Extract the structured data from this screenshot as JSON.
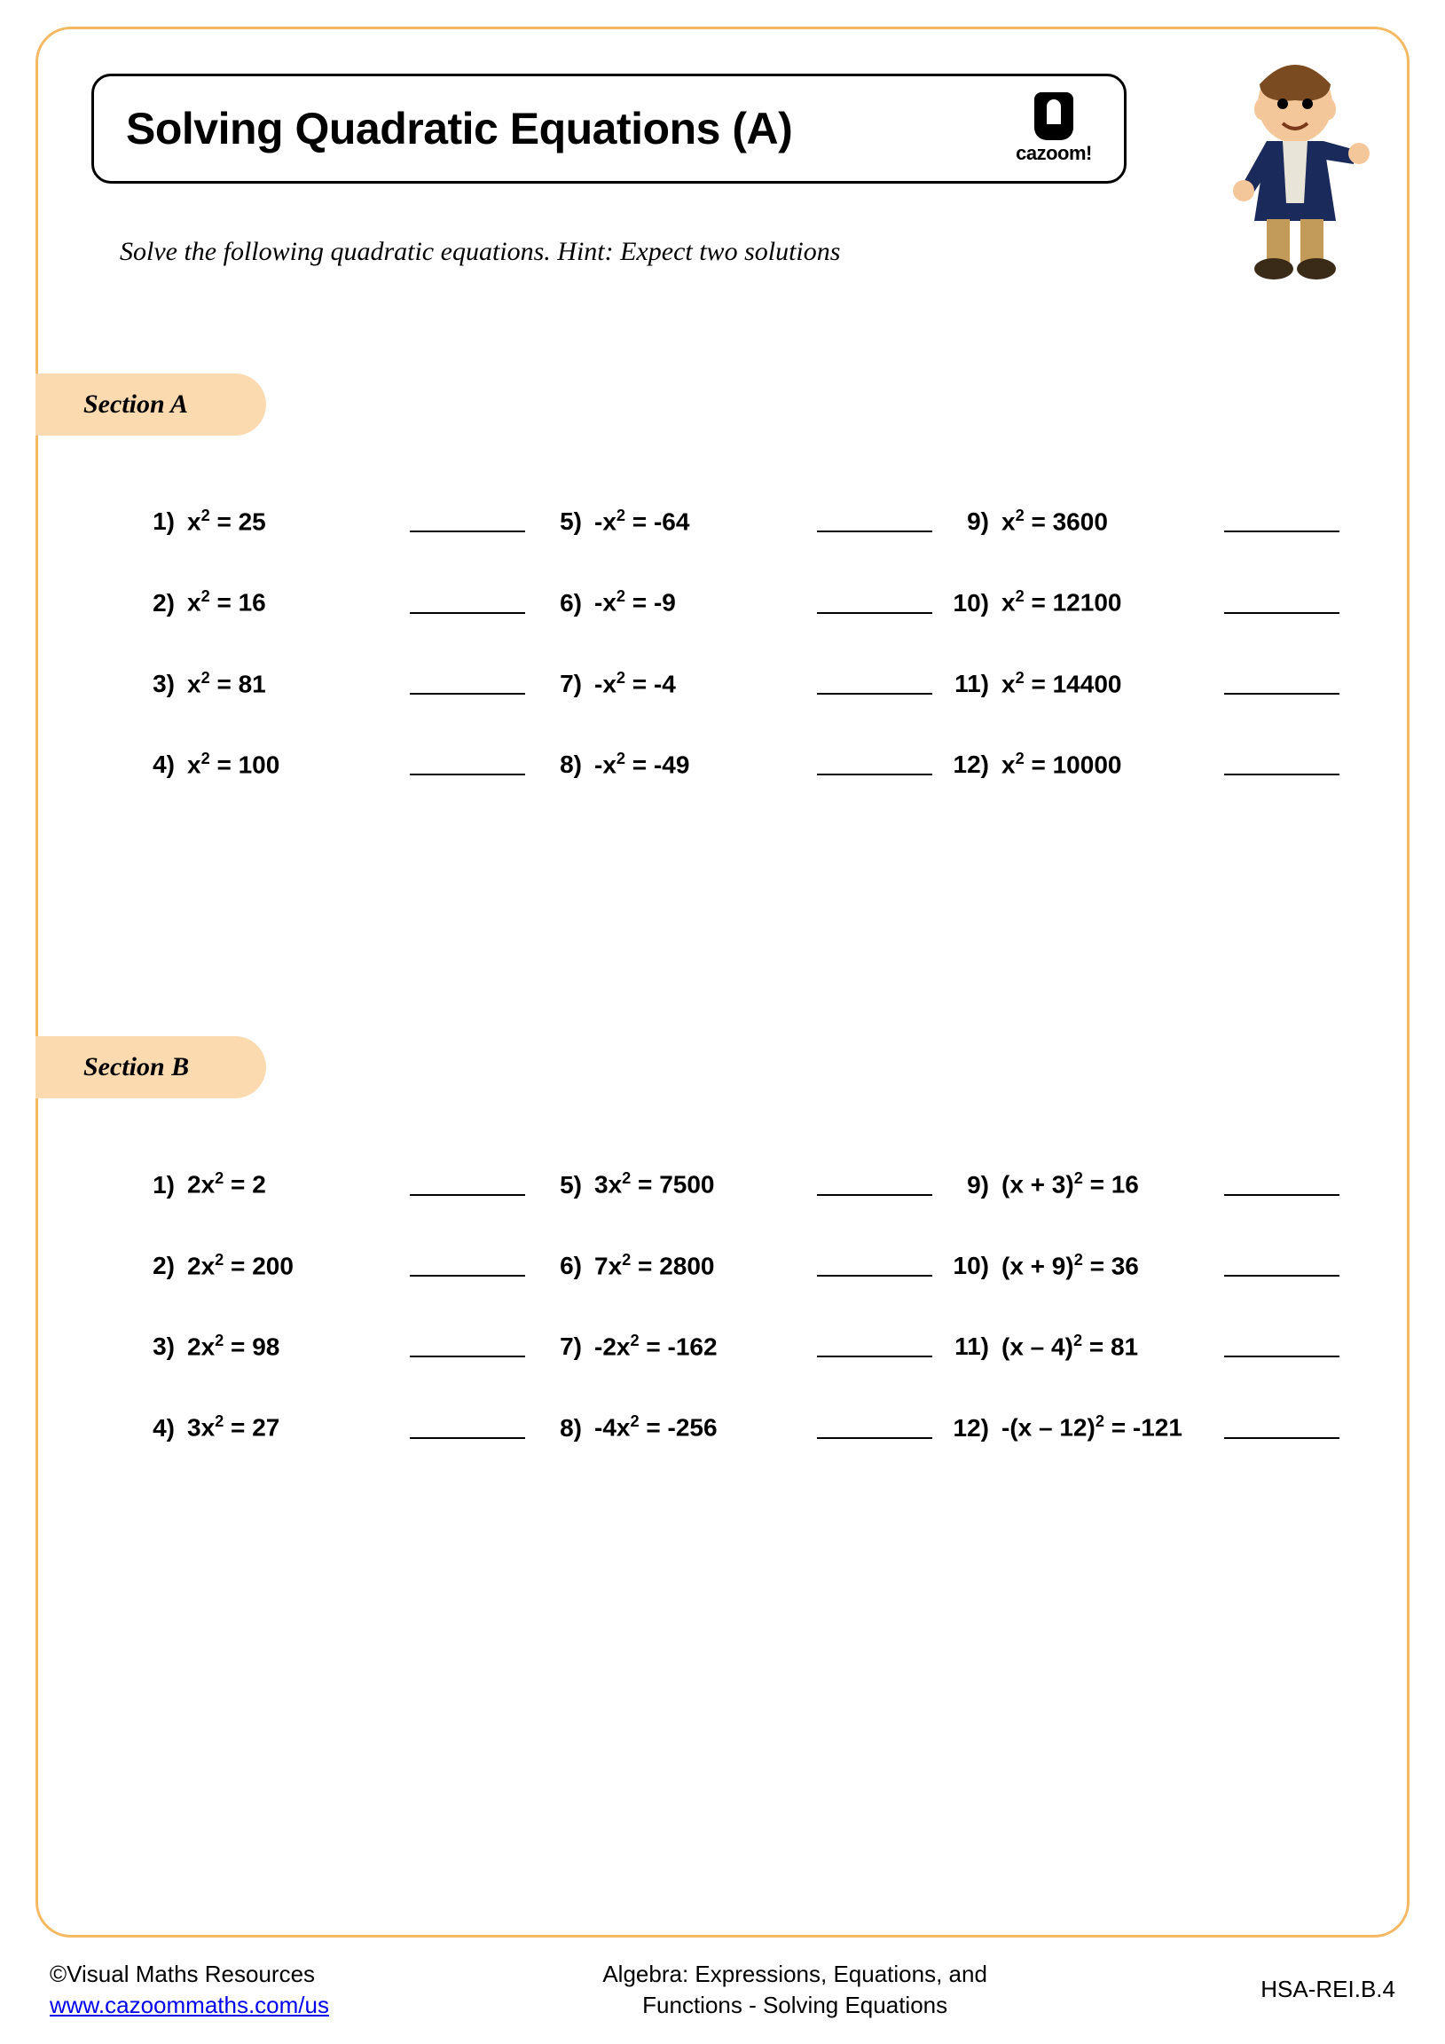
{
  "colors": {
    "frame_border": "#f5b963",
    "section_bg": "#fbdab0",
    "text": "#000000",
    "link": "#0000ee",
    "background": "#ffffff"
  },
  "typography": {
    "title_fontsize": 50,
    "instruction_fontsize": 30,
    "section_fontsize": 30,
    "problem_fontsize": 28,
    "footer_fontsize": 26
  },
  "layout": {
    "columns": 3,
    "rows_per_section": 4,
    "row_gap": 58,
    "frame_radius": 40
  },
  "title": "Solving Quadratic Equations (A)",
  "brand": "cazoom!",
  "instructions": "Solve the following quadratic equations. Hint: Expect two solutions",
  "sectionA": {
    "label": "Section A",
    "problems": [
      {
        "n": "1)",
        "eq": "x<sup>2</sup> = 25"
      },
      {
        "n": "5)",
        "eq": "-x<sup>2</sup> = -64"
      },
      {
        "n": "9)",
        "eq": "x<sup>2</sup> = 3600"
      },
      {
        "n": "2)",
        "eq": "x<sup>2</sup> = 16"
      },
      {
        "n": "6)",
        "eq": "-x<sup>2</sup> = -9"
      },
      {
        "n": "10)",
        "eq": "x<sup>2</sup> = 12100"
      },
      {
        "n": "3)",
        "eq": "x<sup>2</sup> = 81"
      },
      {
        "n": "7)",
        "eq": "-x<sup>2</sup> = -4"
      },
      {
        "n": "11)",
        "eq": "x<sup>2</sup> = 14400"
      },
      {
        "n": "4)",
        "eq": "x<sup>2</sup> = 100"
      },
      {
        "n": "8)",
        "eq": "-x<sup>2</sup> = -49"
      },
      {
        "n": "12)",
        "eq": "x<sup>2</sup> = 10000"
      }
    ]
  },
  "sectionB": {
    "label": "Section B",
    "problems": [
      {
        "n": "1)",
        "eq": "2x<sup>2</sup> = 2"
      },
      {
        "n": "5)",
        "eq": "3x<sup>2</sup> = 7500"
      },
      {
        "n": "9)",
        "eq": "(x + 3)<sup>2</sup> = 16"
      },
      {
        "n": "2)",
        "eq": "2x<sup>2</sup> = 200"
      },
      {
        "n": "6)",
        "eq": "7x<sup>2</sup> = 2800"
      },
      {
        "n": "10)",
        "eq": "(x + 9)<sup>2</sup> = 36"
      },
      {
        "n": "3)",
        "eq": "2x<sup>2</sup> = 98"
      },
      {
        "n": "7)",
        "eq": "-2x<sup>2</sup> = -162"
      },
      {
        "n": "11)",
        "eq": "(x – 4)<sup>2</sup> = 81"
      },
      {
        "n": "4)",
        "eq": "3x<sup>2</sup> = 27"
      },
      {
        "n": "8)",
        "eq": "-4x<sup>2</sup> = -256"
      },
      {
        "n": "12)",
        "eq": "-(x – 12)<sup>2</sup> = -121"
      }
    ]
  },
  "footer": {
    "copyright": "©Visual Maths Resources",
    "url": "www.cazoommaths.com/us",
    "topic_line1": "Algebra: Expressions, Equations, and",
    "topic_line2": "Functions - Solving Equations",
    "standard": "HSA-REI.B.4"
  }
}
